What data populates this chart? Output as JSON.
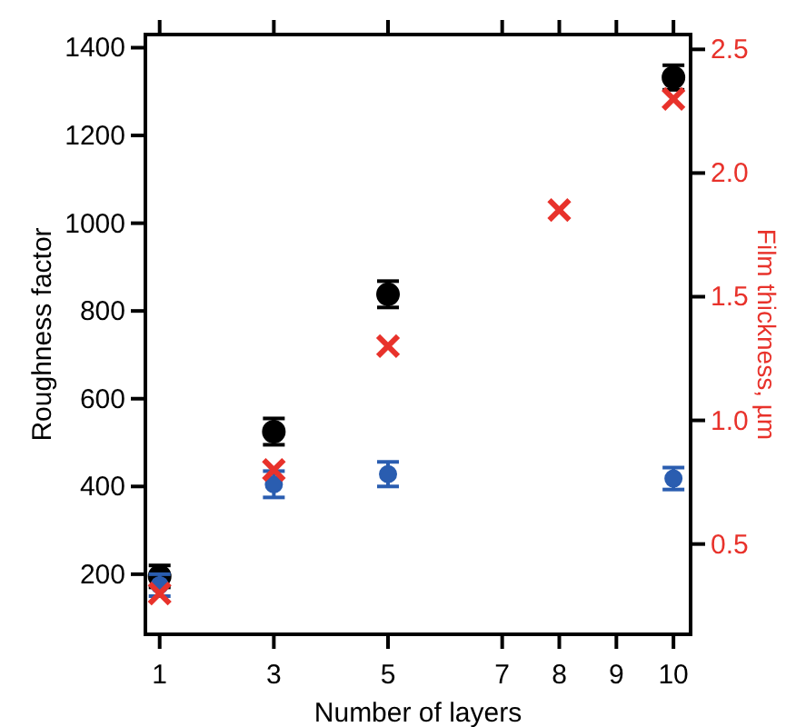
{
  "chart_data": {
    "type": "scatter",
    "xlabel": "Number of layers",
    "ylabel": "Roughness factor",
    "y2label": "Film thickness, µm",
    "x": [
      1,
      3,
      5,
      10
    ],
    "xlim": [
      0.75,
      10.3
    ],
    "xticks": [
      1,
      3,
      5,
      7,
      8,
      9,
      10
    ],
    "ylim": [
      63,
      1430
    ],
    "yticks": [
      200,
      400,
      600,
      800,
      1000,
      1200,
      1400
    ],
    "y2lim": [
      0.135,
      2.56
    ],
    "y2ticks": [
      0.5,
      {
        "value": 1,
        "label": "1.0"
      },
      1.5,
      {
        "value": 2,
        "label": "2.0"
      },
      2.5
    ],
    "marker": "circle",
    "series": [
      {
        "color": "#000000",
        "values": [
          195,
          525,
          838,
          1332
        ],
        "errors": [
          25,
          30,
          30,
          28
        ]
      },
      {
        "color": "#2a5db0",
        "values": [
          175,
          405,
          428,
          418
        ],
        "errors": [
          25,
          30,
          28,
          25
        ]
      },
      {
        "color": "#e8322b",
        "marker": "cross",
        "axis": "y2",
        "x": [
          1,
          3,
          5,
          8,
          10
        ],
        "values": [
          0.3,
          0.8,
          1.3,
          1.85,
          2.3
        ]
      }
    ],
    "grid": false
  }
}
